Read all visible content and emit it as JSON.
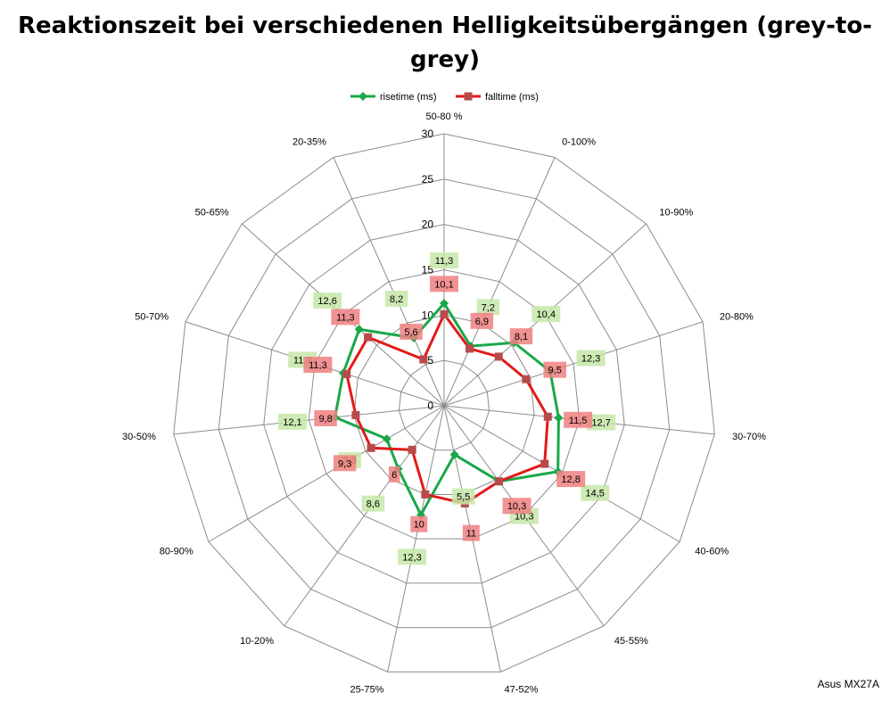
{
  "chart_data": {
    "type": "radar",
    "title": "Reaktionszeit bei verschiedenen Helligkeitsübergängen (grey-to-grey)",
    "categories": [
      "50-80 %",
      "0-100%",
      "10-90%",
      "20-80%",
      "30-70%",
      "40-60%",
      "45-55%",
      "47-52%",
      "25-75%",
      "10-20%",
      "80-90%",
      "30-50%",
      "50-70%",
      "50-65%",
      "20-35%"
    ],
    "ylim": [
      0,
      30
    ],
    "ticks": [
      0,
      5,
      10,
      15,
      20,
      25,
      30
    ],
    "tick_labels": [
      "0",
      "5",
      "10",
      "15",
      "20",
      "25",
      "30"
    ],
    "grid": true,
    "legend_position": "top",
    "series": [
      {
        "name": "risetime (ms)",
        "color": "#19a84a",
        "marker": "diamond",
        "label_bg": "#c6e7a8",
        "values": [
          11.3,
          7.2,
          10.4,
          12.3,
          12.7,
          14.5,
          10.3,
          5.5,
          12.3,
          8.6,
          7.3,
          12.1,
          11.7,
          12.6,
          8.2
        ],
        "labels": [
          "11,3",
          "7,2",
          "10,4",
          "12,3",
          "12,7",
          "14,5",
          "10,3",
          "5,5",
          "12,3",
          "8,6",
          "7,3",
          "12,1",
          "11,7",
          "12,6",
          "8,2"
        ]
      },
      {
        "name": "falltime (ms)",
        "color": "#e21a1a",
        "marker": "square",
        "label_bg": "#f08080",
        "values": [
          10.1,
          6.9,
          8.1,
          9.5,
          11.5,
          12.8,
          10.3,
          11,
          10,
          6,
          9.3,
          9.8,
          11.3,
          11.3,
          5.6
        ],
        "labels": [
          "10,1",
          "6,9",
          "8,1",
          "9,5",
          "11,5",
          "12,8",
          "10,3",
          "11",
          "10",
          "6",
          "9,3",
          "9,8",
          "11,3",
          "11,3",
          "5,6"
        ]
      }
    ]
  },
  "watermark": "Asus MX27A"
}
